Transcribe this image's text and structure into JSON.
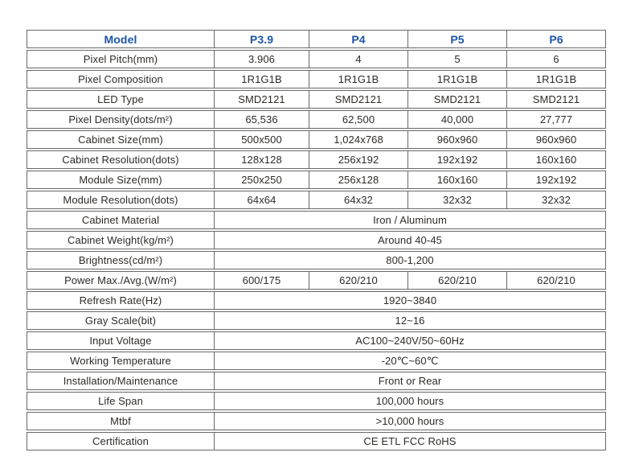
{
  "colors": {
    "header_text": "#1d56ac",
    "body_text": "#2e2b28",
    "border": "#686868",
    "background": "#ffffff"
  },
  "table": {
    "header": {
      "model_label": "Model",
      "models": [
        "P3.9",
        "P4",
        "P5",
        "P6"
      ]
    },
    "rows": [
      {
        "label": "Pixel Pitch(mm)",
        "type": "per-model",
        "values": [
          "3.906",
          "4",
          "5",
          "6"
        ]
      },
      {
        "label": "Pixel Composition",
        "type": "per-model",
        "values": [
          "1R1G1B",
          "1R1G1B",
          "1R1G1B",
          "1R1G1B"
        ]
      },
      {
        "label": "LED Type",
        "type": "per-model",
        "values": [
          "SMD2121",
          "SMD2121",
          "SMD2121",
          "SMD2121"
        ]
      },
      {
        "label": "Pixel Density(dots/m²)",
        "type": "per-model",
        "values": [
          "65,536",
          "62,500",
          "40,000",
          "27,777"
        ]
      },
      {
        "label": "Cabinet Size(mm)",
        "type": "per-model",
        "values": [
          "500x500",
          "1,024x768",
          "960x960",
          "960x960"
        ]
      },
      {
        "label": "Cabinet Resolution(dots)",
        "type": "per-model",
        "values": [
          "128x128",
          "256x192",
          "192x192",
          "160x160"
        ]
      },
      {
        "label": "Module Size(mm)",
        "type": "per-model",
        "values": [
          "250x250",
          "256x128",
          "160x160",
          "192x192"
        ]
      },
      {
        "label": "Module Resolution(dots)",
        "type": "per-model",
        "values": [
          "64x64",
          "64x32",
          "32x32",
          "32x32"
        ]
      },
      {
        "label": "Cabinet Material",
        "type": "merged",
        "value": "Iron / Aluminum"
      },
      {
        "label": "Cabinet Weight(kg/m²)",
        "type": "merged",
        "value": "Around 40-45"
      },
      {
        "label": "Brightness(cd/m²)",
        "type": "merged",
        "value": "800-1,200"
      },
      {
        "label": "Power Max./Avg.(W/m²)",
        "type": "per-model",
        "values": [
          "600/175",
          "620/210",
          "620/210",
          "620/210"
        ]
      },
      {
        "label": "Refresh Rate(Hz)",
        "type": "merged",
        "value": "1920~3840"
      },
      {
        "label": "Gray Scale(bit)",
        "type": "merged",
        "value": "12~16"
      },
      {
        "label": "Input Voltage",
        "type": "merged",
        "value": "AC100~240V/50~60Hz"
      },
      {
        "label": "Working Temperature",
        "type": "merged",
        "value": "-20℃~60℃"
      },
      {
        "label": "Installation/Maintenance",
        "type": "merged",
        "value": "Front or Rear"
      },
      {
        "label": "Life Span",
        "type": "merged",
        "value": "100,000 hours"
      },
      {
        "label": "Mtbf",
        "type": "merged",
        "value": ">10,000 hours"
      },
      {
        "label": "Certification",
        "type": "merged",
        "value": "CE ETL FCC RoHS"
      }
    ]
  }
}
